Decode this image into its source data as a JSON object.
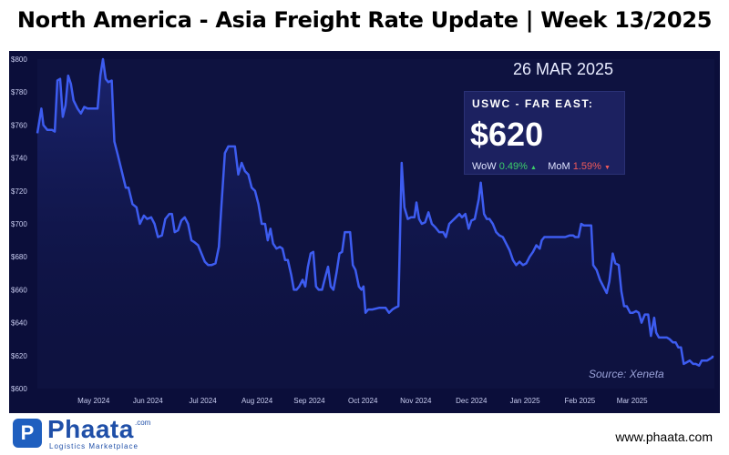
{
  "header": {
    "title": "North America - Asia Freight Rate Update | Week 13/2025"
  },
  "badge": {
    "date": "26 MAR 2025",
    "route": "USWC - FAR EAST:",
    "price": "$620",
    "wow_label": "WoW",
    "wow_value": "0.49%",
    "wow_arrow": "▲",
    "mom_label": "MoM",
    "mom_value": "1.59%",
    "mom_arrow": "▼"
  },
  "source": "Source: Xeneta",
  "brand": {
    "name": "Phaata",
    "com": ".com",
    "tagline": "Logistics Marketplace",
    "website": "www.phaata.com"
  },
  "colors": {
    "line": "#3d5cf0",
    "background": "#0b0e3a",
    "up": "#3ccf6a",
    "down": "#f05a5a"
  },
  "chart_data": {
    "type": "line",
    "title": "",
    "xlabel": "",
    "ylabel": "",
    "ylim": [
      600,
      800
    ],
    "xlim": [
      0,
      100
    ],
    "yticks": [
      600,
      620,
      640,
      660,
      680,
      700,
      720,
      740,
      760,
      780,
      800
    ],
    "ytick_labels": [
      "$600",
      "$620",
      "$640",
      "$660",
      "$680",
      "$700",
      "$720",
      "$740",
      "$760",
      "$780",
      "$800"
    ],
    "xticks": [
      {
        "label": "May 2024",
        "x": 8.4
      },
      {
        "label": "Jun 2024",
        "x": 16.5
      },
      {
        "label": "Jul 2024",
        "x": 24.7
      },
      {
        "label": "Aug 2024",
        "x": 32.8
      },
      {
        "label": "Sep 2024",
        "x": 40.6
      },
      {
        "label": "Oct 2024",
        "x": 48.6
      },
      {
        "label": "Nov 2024",
        "x": 56.5
      },
      {
        "label": "Dec 2024",
        "x": 64.8
      },
      {
        "label": "Jan 2025",
        "x": 72.8
      },
      {
        "label": "Feb 2025",
        "x": 81.0
      },
      {
        "label": "Mar 2025",
        "x": 88.8
      }
    ],
    "grid": false,
    "series": [
      {
        "values": [
          [
            0,
            755
          ],
          [
            0.6,
            770
          ],
          [
            0.9,
            760
          ],
          [
            1.5,
            757
          ],
          [
            2.2,
            757
          ],
          [
            2.6,
            756
          ],
          [
            3,
            787
          ],
          [
            3.4,
            788
          ],
          [
            3.8,
            765
          ],
          [
            4.2,
            772
          ],
          [
            4.6,
            790
          ],
          [
            5,
            785
          ],
          [
            5.4,
            775
          ],
          [
            6,
            770
          ],
          [
            6.5,
            767
          ],
          [
            7,
            771
          ],
          [
            7.5,
            770
          ],
          [
            8.5,
            770
          ],
          [
            9,
            770
          ],
          [
            9.4,
            790
          ],
          [
            9.8,
            800
          ],
          [
            10.2,
            788
          ],
          [
            10.6,
            786
          ],
          [
            11.1,
            787
          ],
          [
            11.5,
            750
          ],
          [
            12,
            742
          ],
          [
            12.6,
            732
          ],
          [
            13.2,
            722
          ],
          [
            13.6,
            722
          ],
          [
            14.2,
            712
          ],
          [
            14.8,
            710
          ],
          [
            15.3,
            700
          ],
          [
            15.9,
            705
          ],
          [
            16.4,
            703
          ],
          [
            17,
            704
          ],
          [
            17.5,
            700
          ],
          [
            18,
            692
          ],
          [
            18.6,
            693
          ],
          [
            19.1,
            703
          ],
          [
            19.7,
            706
          ],
          [
            20.1,
            706
          ],
          [
            20.5,
            695
          ],
          [
            21,
            696
          ],
          [
            21.5,
            702
          ],
          [
            22,
            704
          ],
          [
            22.5,
            700
          ],
          [
            23,
            690
          ],
          [
            23.4,
            689
          ],
          [
            24,
            687
          ],
          [
            24.5,
            682
          ],
          [
            25,
            677
          ],
          [
            25.5,
            675
          ],
          [
            26,
            675
          ],
          [
            26.6,
            676
          ],
          [
            27.1,
            686
          ],
          [
            27.5,
            712
          ],
          [
            28,
            743
          ],
          [
            28.5,
            747
          ],
          [
            29,
            747
          ],
          [
            29.5,
            747
          ],
          [
            30,
            730
          ],
          [
            30.5,
            737
          ],
          [
            31,
            732
          ],
          [
            31.5,
            730
          ],
          [
            32,
            722
          ],
          [
            32.5,
            720
          ],
          [
            33,
            712
          ],
          [
            33.5,
            700
          ],
          [
            34,
            700
          ],
          [
            34.4,
            690
          ],
          [
            34.8,
            697
          ],
          [
            35.2,
            688
          ],
          [
            35.7,
            685
          ],
          [
            36.2,
            686
          ],
          [
            36.6,
            685
          ],
          [
            37,
            678
          ],
          [
            37.4,
            678
          ],
          [
            37.9,
            669
          ],
          [
            38.3,
            660
          ],
          [
            38.7,
            660
          ],
          [
            39.1,
            662
          ],
          [
            39.6,
            666
          ],
          [
            40,
            662
          ],
          [
            40.4,
            674
          ],
          [
            40.8,
            682
          ],
          [
            41.2,
            683
          ],
          [
            41.6,
            662
          ],
          [
            42,
            660
          ],
          [
            42.5,
            660
          ],
          [
            43,
            668
          ],
          [
            43.4,
            674
          ],
          [
            43.8,
            662
          ],
          [
            44.2,
            660
          ],
          [
            44.7,
            671
          ],
          [
            45.1,
            682
          ],
          [
            45.5,
            683
          ],
          [
            45.9,
            695
          ],
          [
            46.3,
            695
          ],
          [
            46.7,
            695
          ],
          [
            47.1,
            675
          ],
          [
            47.5,
            672
          ],
          [
            48,
            662
          ],
          [
            48.4,
            660
          ],
          [
            48.7,
            662
          ],
          [
            49,
            646
          ],
          [
            49.4,
            648
          ],
          [
            50,
            648
          ],
          [
            51,
            649
          ],
          [
            52,
            649
          ],
          [
            52.5,
            646
          ],
          [
            53,
            648
          ],
          [
            53.4,
            649
          ],
          [
            53.9,
            650
          ],
          [
            54.4,
            737
          ],
          [
            54.8,
            710
          ],
          [
            55.3,
            703
          ],
          [
            55.8,
            704
          ],
          [
            56.3,
            704
          ],
          [
            56.6,
            713
          ],
          [
            57,
            703
          ],
          [
            57.4,
            700
          ],
          [
            57.9,
            701
          ],
          [
            58.4,
            707
          ],
          [
            58.9,
            700
          ],
          [
            59.4,
            698
          ],
          [
            60,
            695
          ],
          [
            60.6,
            695
          ],
          [
            61,
            692
          ],
          [
            61.5,
            700
          ],
          [
            62,
            702
          ],
          [
            62.5,
            704
          ],
          [
            63,
            706
          ],
          [
            63.4,
            704
          ],
          [
            63.9,
            706
          ],
          [
            64.4,
            697
          ],
          [
            64.8,
            702
          ],
          [
            65.3,
            703
          ],
          [
            65.9,
            715
          ],
          [
            66.2,
            725
          ],
          [
            66.7,
            706
          ],
          [
            67.1,
            703
          ],
          [
            67.5,
            703
          ],
          [
            68,
            700
          ],
          [
            68.5,
            695
          ],
          [
            69,
            693
          ],
          [
            69.5,
            692
          ],
          [
            70,
            688
          ],
          [
            70.5,
            684
          ],
          [
            71,
            678
          ],
          [
            71.5,
            675
          ],
          [
            72,
            677
          ],
          [
            72.5,
            675
          ],
          [
            73,
            676
          ],
          [
            73.5,
            680
          ],
          [
            74,
            683
          ],
          [
            74.5,
            687
          ],
          [
            75,
            685
          ],
          [
            75.3,
            690
          ],
          [
            75.7,
            692
          ],
          [
            76.5,
            692
          ],
          [
            77.3,
            692
          ],
          [
            78,
            692
          ],
          [
            78.8,
            692
          ],
          [
            79.5,
            693
          ],
          [
            80,
            693
          ],
          [
            80.3,
            692
          ],
          [
            80.8,
            692
          ],
          [
            81.2,
            700
          ],
          [
            81.6,
            699
          ],
          [
            82.3,
            699
          ],
          [
            82.7,
            699
          ],
          [
            83,
            675
          ],
          [
            83.5,
            672
          ],
          [
            84,
            666
          ],
          [
            84.5,
            662
          ],
          [
            85,
            658
          ],
          [
            85.4,
            665
          ],
          [
            85.9,
            682
          ],
          [
            86.3,
            676
          ],
          [
            86.8,
            675
          ],
          [
            87.2,
            659
          ],
          [
            87.6,
            650
          ],
          [
            88,
            650
          ],
          [
            88.5,
            646
          ],
          [
            88.9,
            646
          ],
          [
            89.4,
            647
          ],
          [
            89.8,
            646
          ],
          [
            90.2,
            640
          ],
          [
            90.7,
            645
          ],
          [
            91.2,
            645
          ],
          [
            91.6,
            632
          ],
          [
            92.1,
            643
          ],
          [
            92.4,
            634
          ],
          [
            92.8,
            631
          ],
          [
            93.4,
            631
          ],
          [
            94,
            631
          ],
          [
            94.4,
            630
          ],
          [
            94.9,
            628
          ],
          [
            95.3,
            628
          ],
          [
            95.7,
            625
          ],
          [
            96.1,
            625
          ],
          [
            96.5,
            615
          ],
          [
            97,
            616
          ],
          [
            97.4,
            617
          ],
          [
            97.9,
            615
          ],
          [
            98.3,
            615
          ],
          [
            98.8,
            614
          ],
          [
            99.2,
            617
          ],
          [
            99.6,
            617
          ],
          [
            100,
            617
          ],
          [
            100.4,
            618
          ],
          [
            100.8,
            619
          ],
          [
            101.2,
            620
          ]
        ]
      }
    ]
  }
}
